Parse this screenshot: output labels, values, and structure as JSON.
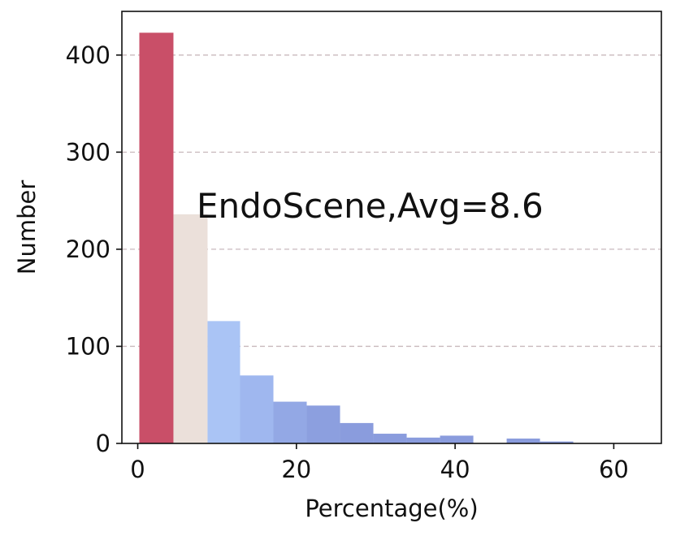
{
  "chart_data": {
    "type": "bar",
    "annotation": "EndoScene,Avg=8.6",
    "xlabel": "Percentage(%)",
    "ylabel": "Number",
    "xlim": [
      -2,
      66
    ],
    "ylim": [
      0,
      445
    ],
    "xticks": [
      0,
      20,
      40,
      60
    ],
    "yticks": [
      0,
      100,
      200,
      300,
      400
    ],
    "grid": "horizontal-dashed",
    "bins": [
      {
        "x0": 0.2,
        "x1": 4.5,
        "value": 423,
        "color": "#c94f68"
      },
      {
        "x0": 4.5,
        "x1": 8.8,
        "value": 236,
        "color": "#ebe0da"
      },
      {
        "x0": 8.8,
        "x1": 12.9,
        "value": 126,
        "color": "#aac4f5"
      },
      {
        "x0": 12.9,
        "x1": 17.1,
        "value": 70,
        "color": "#9fb7ef"
      },
      {
        "x0": 17.1,
        "x1": 21.3,
        "value": 43,
        "color": "#93a8e5"
      },
      {
        "x0": 21.3,
        "x1": 25.5,
        "value": 39,
        "color": "#8c9fdf"
      },
      {
        "x0": 25.5,
        "x1": 29.7,
        "value": 21,
        "color": "#8a9cdd"
      },
      {
        "x0": 29.7,
        "x1": 33.9,
        "value": 10,
        "color": "#8a9cdd"
      },
      {
        "x0": 33.9,
        "x1": 38.1,
        "value": 6,
        "color": "#8a9cdd"
      },
      {
        "x0": 38.1,
        "x1": 42.3,
        "value": 8,
        "color": "#8a9cdd"
      },
      {
        "x0": 42.3,
        "x1": 46.5,
        "value": 0,
        "color": "#8a9cdd"
      },
      {
        "x0": 46.5,
        "x1": 50.7,
        "value": 5,
        "color": "#8a9cdd"
      },
      {
        "x0": 50.7,
        "x1": 54.9,
        "value": 2,
        "color": "#8a9cdd"
      },
      {
        "x0": 54.9,
        "x1": 59.1,
        "value": 0,
        "color": "#8a9cdd"
      },
      {
        "x0": 59.1,
        "x1": 63.3,
        "value": 0,
        "color": "#8a9cdd"
      }
    ]
  }
}
